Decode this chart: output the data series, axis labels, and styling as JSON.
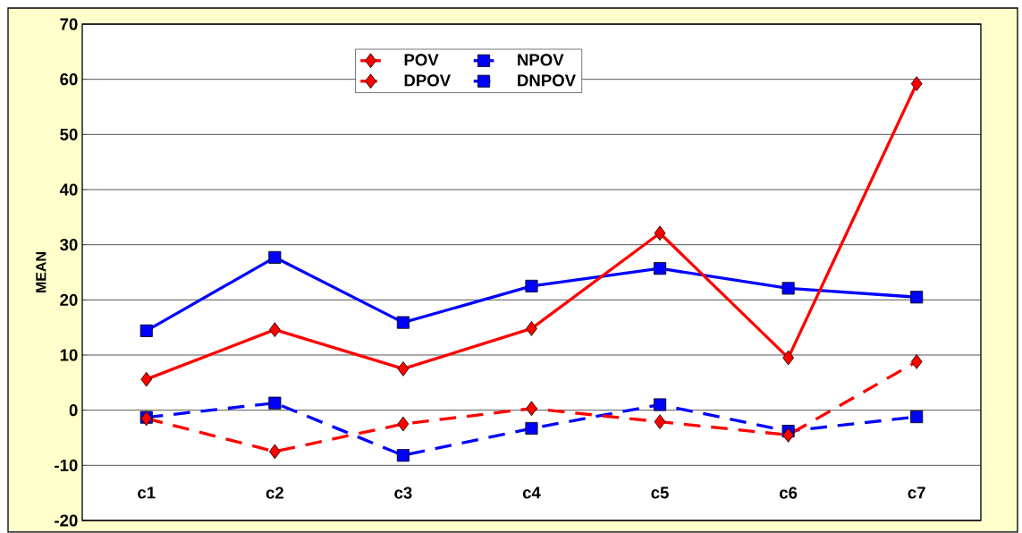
{
  "chart_data": {
    "type": "line",
    "ylabel": "MEAN",
    "categories": [
      "c1",
      "c2",
      "c3",
      "c4",
      "c5",
      "c6",
      "c7"
    ],
    "series": [
      {
        "name": "POV",
        "color": "#ff0000",
        "marker": "diamond",
        "line_style": "solid",
        "values": [
          5.6,
          14.6,
          7.5,
          14.8,
          32.1,
          9.5,
          59.2
        ]
      },
      {
        "name": "NPOV",
        "color": "#0000ff",
        "marker": "square",
        "line_style": "solid",
        "values": [
          14.4,
          27.7,
          15.9,
          22.5,
          25.7,
          22.1,
          20.5
        ]
      },
      {
        "name": "DPOV",
        "color": "#ff0000",
        "marker": "diamond",
        "line_style": "dashed",
        "values": [
          -1.5,
          -7.5,
          -2.5,
          0.3,
          -2.1,
          -4.5,
          8.8
        ]
      },
      {
        "name": "DNPOV",
        "color": "#0000ff",
        "marker": "square",
        "line_style": "dashed",
        "values": [
          -1.3,
          1.3,
          -8.2,
          -3.3,
          1.0,
          -3.8,
          -1.2
        ]
      }
    ],
    "ylim": [
      -20,
      70
    ],
    "yticks": [
      -20,
      -10,
      0,
      10,
      20,
      30,
      40,
      50,
      60,
      70
    ],
    "grid": "y",
    "legend": "top"
  }
}
